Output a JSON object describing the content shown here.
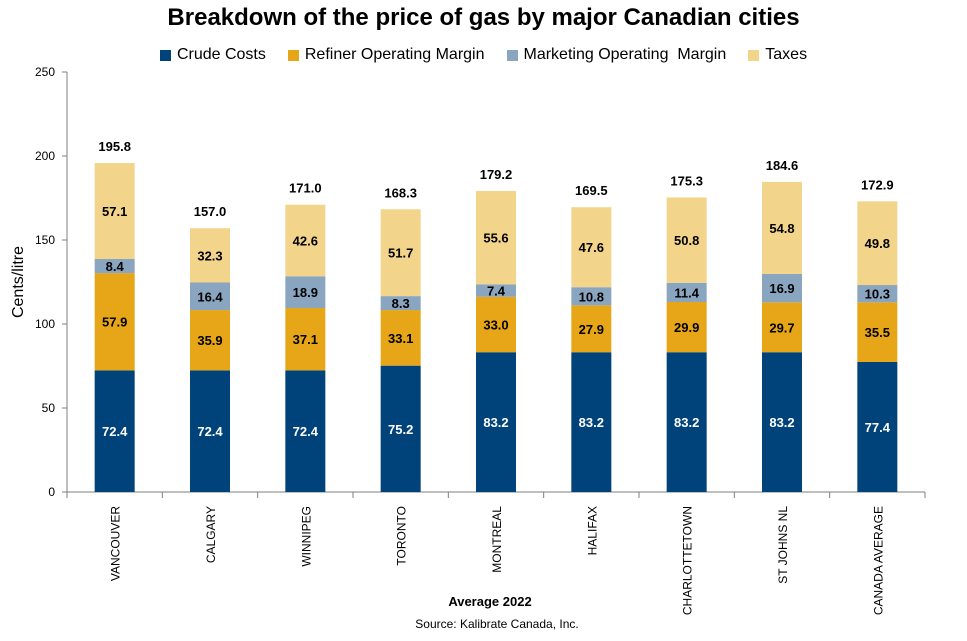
{
  "chart_data": {
    "type": "bar",
    "stacked": true,
    "title": "Breakdown of the price of gas by major Canadian cities",
    "xlabel": "Average 2022",
    "ylabel": "Cents/litre",
    "source": "Source: Kalibrate Canada, Inc.",
    "ylim": [
      0,
      250
    ],
    "yticks": [
      0,
      50,
      100,
      150,
      200,
      250
    ],
    "grid": false,
    "legend_position": "top",
    "categories": [
      "VANCOUVER",
      "CALGARY",
      "WINNIPEG",
      "TORONTO",
      "MONTREAL",
      "HALIFAX",
      "CHARLOTTETOWN",
      "ST JOHNS NL",
      "CANADA AVERAGE"
    ],
    "series": [
      {
        "name": "Crude Costs",
        "color": "#00427a",
        "label_color": "#ffffff",
        "values": [
          72.4,
          72.4,
          72.4,
          75.2,
          83.2,
          83.2,
          83.2,
          83.2,
          77.4
        ]
      },
      {
        "name": "Refiner Operating Margin",
        "color": "#e6a618",
        "label_color": "#000000",
        "values": [
          57.9,
          35.9,
          37.1,
          33.1,
          33.0,
          27.9,
          29.9,
          29.7,
          35.5
        ]
      },
      {
        "name": "Marketing Operating  Margin",
        "color": "#8aa5bf",
        "label_color": "#000000",
        "values": [
          8.4,
          16.4,
          18.9,
          8.3,
          7.4,
          10.8,
          11.4,
          16.9,
          10.3
        ]
      },
      {
        "name": "Taxes",
        "color": "#f2d48b",
        "label_color": "#000000",
        "values": [
          57.1,
          32.3,
          42.6,
          51.7,
          55.6,
          47.6,
          50.8,
          54.8,
          49.8
        ]
      }
    ],
    "totals": [
      "195.8",
      "157.0",
      "171.0",
      "168.3",
      "179.2",
      "169.5",
      "175.3",
      "184.6",
      "172.9"
    ]
  }
}
